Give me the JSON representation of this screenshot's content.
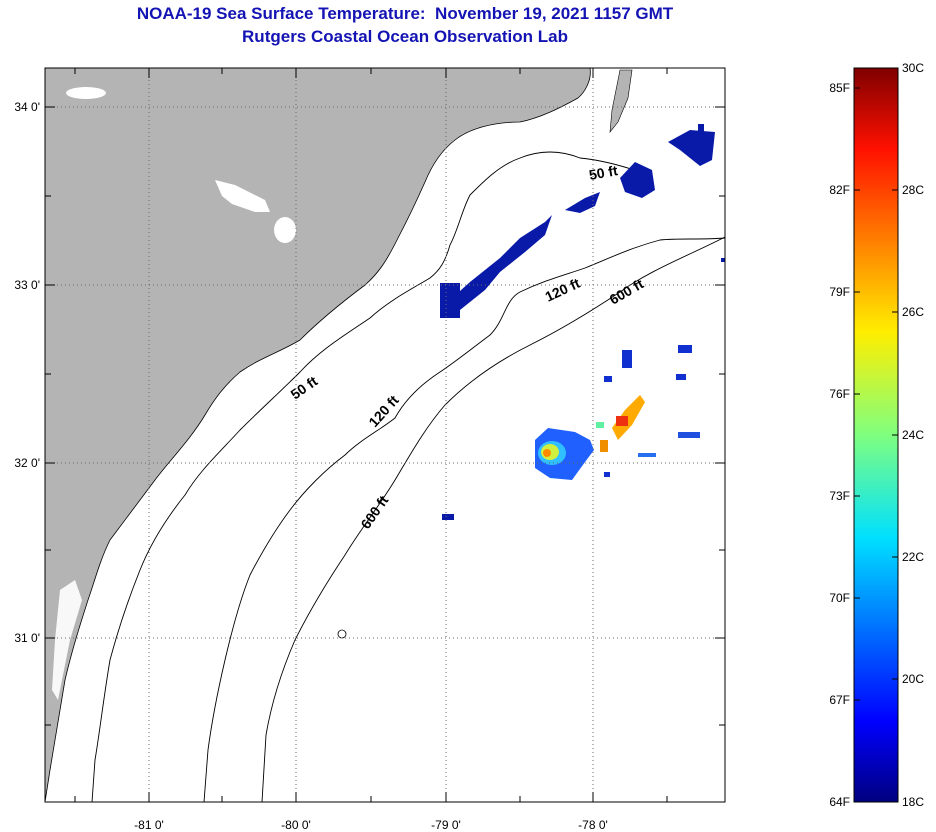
{
  "title": {
    "line1": "NOAA-19 Sea Surface Temperature:  November 19, 2021 1157 GMT",
    "line2": "Rutgers Coastal Ocean Observation Lab"
  },
  "map": {
    "lon_range": [
      -81.7,
      -77.0
    ],
    "lat_range": [
      30.2,
      34.2
    ],
    "x_ticks": [
      {
        "lon": -81.0,
        "label": "-81 0'"
      },
      {
        "lon": -80.0,
        "label": "-80 0'"
      },
      {
        "lon": -79.0,
        "label": "-79 0'"
      },
      {
        "lon": -78.0,
        "label": "-78 0'"
      }
    ],
    "y_ticks": [
      {
        "lat": 34.0,
        "label": "34 0'"
      },
      {
        "lat": 33.0,
        "label": "33 0'"
      },
      {
        "lat": 32.0,
        "label": "32 0'"
      },
      {
        "lat": 31.0,
        "label": "31 0'"
      }
    ],
    "land_color": "#b4b4b4",
    "ocean_color": "#ffffff",
    "gridlines": "dotted",
    "contour_labels": [
      "50 ft",
      "50 ft",
      "120 ft",
      "120 ft",
      "600 ft",
      "600 ft"
    ]
  },
  "colorbar": {
    "min_c": 18,
    "max_c": 30,
    "labels_f": [
      "85F",
      "82F",
      "79F",
      "76F",
      "73F",
      "70F",
      "67F",
      "64F"
    ],
    "labels_c": [
      "30C",
      "28C",
      "26C",
      "24C",
      "22C",
      "20C",
      "18C"
    ]
  }
}
